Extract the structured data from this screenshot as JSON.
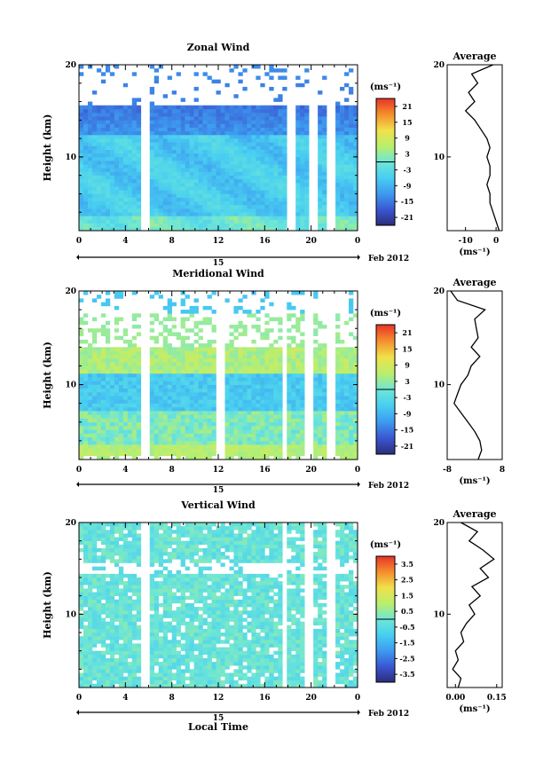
{
  "chart_data": [
    {
      "type": "heatmap",
      "title": "Zonal Wind",
      "ylabel": "Height (km)",
      "ylim": [
        2,
        20
      ],
      "y_ticks": [
        "10",
        "20"
      ],
      "xlim": [
        0,
        24
      ],
      "x_ticks": [
        "0",
        "4",
        "8",
        "12",
        "16",
        "20",
        "0"
      ],
      "date_day": "15",
      "date_month": "Feb 2012",
      "colorbar": {
        "unit": "(ms⁻¹)",
        "range": [
          -24,
          24
        ],
        "ticks": [
          "21",
          "15",
          "9",
          "3",
          "-3",
          "-9",
          "-15",
          "-21"
        ]
      },
      "average_profile": {
        "title": "Average",
        "xlabel": "(ms⁻¹)",
        "xlim": [
          -16,
          2
        ],
        "x_ticks": [
          "-10",
          "0"
        ],
        "y_ticks": [
          "10",
          "20"
        ],
        "profile": [
          [
            -1,
            20
          ],
          [
            -8,
            19
          ],
          [
            -6,
            18
          ],
          [
            -9,
            17
          ],
          [
            -7,
            16
          ],
          [
            -10,
            15
          ],
          [
            -7,
            14
          ],
          [
            -5,
            13
          ],
          [
            -3,
            12
          ],
          [
            -2,
            11
          ],
          [
            -3,
            10
          ],
          [
            -2,
            9
          ],
          [
            -2,
            8
          ],
          [
            -3,
            7
          ],
          [
            -2,
            6
          ],
          [
            -2,
            5
          ],
          [
            -1,
            4
          ],
          [
            0,
            3
          ],
          [
            1,
            2
          ]
        ]
      },
      "time_gaps_hours": [
        [
          5.5,
          6
        ],
        [
          18,
          18.5
        ],
        [
          20,
          20.5
        ],
        [
          21.5,
          22
        ]
      ]
    },
    {
      "type": "heatmap",
      "title": "Meridional Wind",
      "ylabel": "Height (km)",
      "ylim": [
        2,
        20
      ],
      "y_ticks": [
        "10",
        "20"
      ],
      "xlim": [
        0,
        24
      ],
      "x_ticks": [
        "0",
        "4",
        "8",
        "12",
        "16",
        "20",
        "0"
      ],
      "date_day": "15",
      "date_month": "Feb 2012",
      "colorbar": {
        "unit": "(ms⁻¹)",
        "range": [
          -24,
          24
        ],
        "ticks": [
          "21",
          "15",
          "9",
          "3",
          "-3",
          "-9",
          "-15",
          "-21"
        ]
      },
      "average_profile": {
        "title": "Average",
        "xlabel": "(ms⁻¹)",
        "xlim": [
          -8,
          8
        ],
        "x_ticks": [
          "-8",
          "8"
        ],
        "y_ticks": [
          "10",
          "20"
        ],
        "profile": [
          [
            -7,
            20
          ],
          [
            -5,
            19
          ],
          [
            3,
            18
          ],
          [
            0,
            17
          ],
          [
            0.5,
            16
          ],
          [
            1,
            15
          ],
          [
            -1,
            14
          ],
          [
            1.5,
            13
          ],
          [
            -1,
            12
          ],
          [
            -2,
            11
          ],
          [
            -4,
            10
          ],
          [
            -5,
            9
          ],
          [
            -6,
            8
          ],
          [
            -4,
            7
          ],
          [
            -2,
            6
          ],
          [
            0,
            5
          ],
          [
            1.5,
            4
          ],
          [
            2,
            3
          ],
          [
            1,
            2
          ]
        ]
      },
      "time_gaps_hours": [
        [
          5.5,
          6
        ],
        [
          12,
          12.5
        ],
        [
          17.5,
          18
        ],
        [
          19.5,
          20
        ],
        [
          21.5,
          22
        ]
      ]
    },
    {
      "type": "heatmap",
      "title": "Vertical Wind",
      "ylabel": "Height (km)",
      "xlabel": "Local Time",
      "ylim": [
        2,
        20
      ],
      "y_ticks": [
        "10",
        "20"
      ],
      "xlim": [
        0,
        24
      ],
      "x_ticks": [
        "0",
        "4",
        "8",
        "12",
        "16",
        "20",
        "0"
      ],
      "date_day": "15",
      "date_month": "Feb 2012",
      "colorbar": {
        "unit": "(ms⁻¹)",
        "range": [
          -4,
          4
        ],
        "ticks": [
          "3.5",
          "2.5",
          "1.5",
          "0.5",
          "-0.5",
          "-1.5",
          "-2.5",
          "-3.5"
        ]
      },
      "average_profile": {
        "title": "Average",
        "xlabel": "(ms⁻¹)",
        "xlim": [
          -0.03,
          0.17
        ],
        "x_ticks": [
          "0.00",
          "0.15"
        ],
        "y_ticks": [
          "10",
          "20"
        ],
        "profile": [
          [
            0.02,
            20
          ],
          [
            0.08,
            19
          ],
          [
            0.05,
            18
          ],
          [
            0.1,
            17
          ],
          [
            0.14,
            16
          ],
          [
            0.09,
            15
          ],
          [
            0.12,
            14
          ],
          [
            0.06,
            13
          ],
          [
            0.09,
            12
          ],
          [
            0.05,
            11
          ],
          [
            0.07,
            10
          ],
          [
            0.04,
            9
          ],
          [
            0.02,
            8
          ],
          [
            0.03,
            7
          ],
          [
            0.0,
            6
          ],
          [
            0.01,
            5
          ],
          [
            -0.01,
            4
          ],
          [
            0.02,
            3
          ],
          [
            0.01,
            2
          ]
        ]
      },
      "time_gaps_hours": [
        [
          5.5,
          6
        ],
        [
          17.5,
          18
        ],
        [
          19.5,
          20
        ],
        [
          21.5,
          22
        ]
      ]
    }
  ]
}
